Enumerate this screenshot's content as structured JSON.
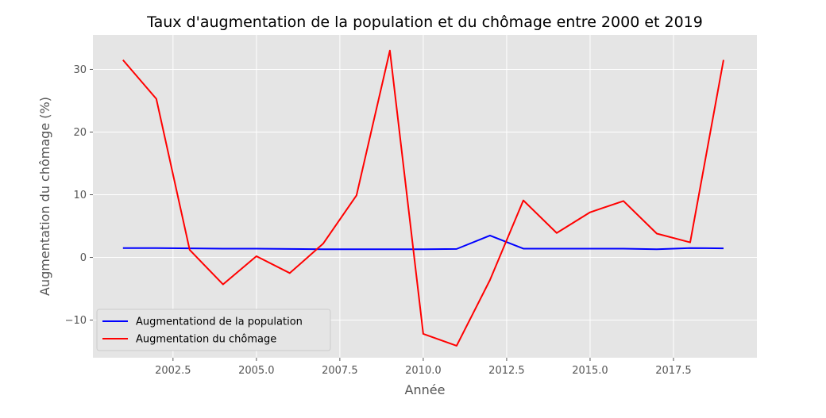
{
  "chart_data": {
    "type": "line",
    "title": "Taux d'augmentation de la population et du chômage entre 2000 et 2019",
    "xlabel": "Année",
    "ylabel": "Augmentation du chômage (%)",
    "xlim": [
      2000.1,
      2020.0
    ],
    "ylim": [
      -16.0,
      35.5
    ],
    "xticks": [
      2002.5,
      2005.0,
      2007.5,
      2010.0,
      2012.5,
      2015.0,
      2017.5
    ],
    "xtick_labels": [
      "2002.5",
      "2005.0",
      "2007.5",
      "2010.0",
      "2012.5",
      "2015.0",
      "2017.5"
    ],
    "yticks": [
      -10,
      0,
      10,
      20,
      30
    ],
    "ytick_labels": [
      "−10",
      "0",
      "10",
      "20",
      "30"
    ],
    "grid": true,
    "legend_position": "lower-left",
    "x": [
      2001,
      2002,
      2003,
      2004,
      2005,
      2006,
      2007,
      2008,
      2009,
      2010,
      2011,
      2012,
      2013,
      2014,
      2015,
      2016,
      2017,
      2018,
      2019
    ],
    "series": [
      {
        "name": "Augmentationd de la population",
        "color": "#0000ff",
        "values": [
          1.5,
          1.5,
          1.45,
          1.4,
          1.4,
          1.35,
          1.3,
          1.3,
          1.3,
          1.3,
          1.35,
          3.5,
          1.4,
          1.4,
          1.4,
          1.4,
          1.3,
          1.5,
          1.45
        ]
      },
      {
        "name": "Augmentation du chômage",
        "color": "#ff0000",
        "values": [
          31.5,
          25.3,
          1.2,
          -4.3,
          0.2,
          -2.5,
          2.2,
          9.9,
          33.0,
          -12.2,
          -14.1,
          -3.6,
          9.1,
          3.9,
          7.2,
          9.0,
          3.8,
          2.4,
          31.5
        ]
      }
    ],
    "colors": {
      "plot_background": "#e5e5e5",
      "grid": "#ffffff",
      "tick_text": "#555555",
      "title_text": "#000000"
    }
  }
}
